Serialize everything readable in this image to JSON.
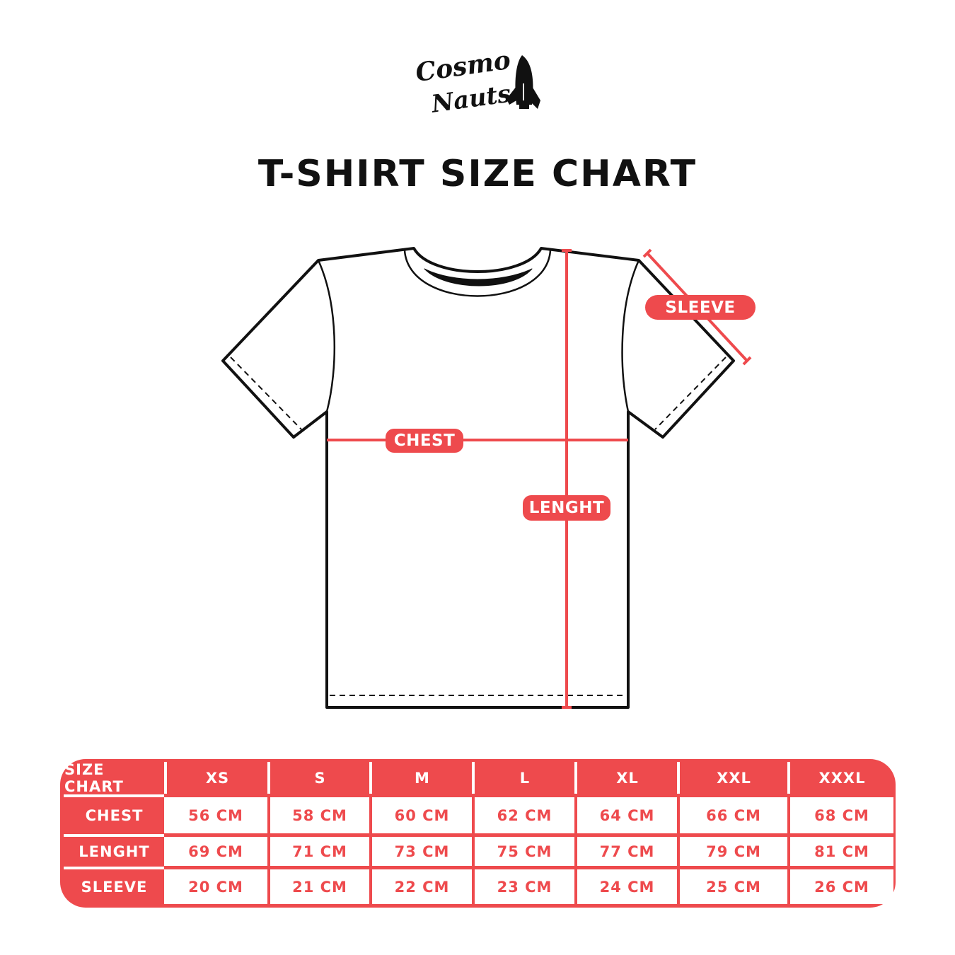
{
  "logo": {
    "text": "Cosmo Nauts",
    "icon": "rocket-icon"
  },
  "title": "T-SHIRT SIZE CHART",
  "diagram": {
    "labels": {
      "chest": "CHEST",
      "length": "LENGHT",
      "sleeve": "SLEEVE"
    },
    "accent_color": "#ee4a4d"
  },
  "table": {
    "corner_label": "SIZE CHART",
    "sizes": [
      "XS",
      "S",
      "M",
      "L",
      "XL",
      "XXL",
      "XXXL"
    ],
    "rows": [
      {
        "label": "CHEST",
        "values": [
          "56 CM",
          "58 CM",
          "60 CM",
          "62 CM",
          "64 CM",
          "66 CM",
          "68 CM"
        ]
      },
      {
        "label": "LENGHT",
        "values": [
          "69 CM",
          "71 CM",
          "73 CM",
          "75 CM",
          "77 CM",
          "79 CM",
          "81 CM"
        ]
      },
      {
        "label": "SLEEVE",
        "values": [
          "20 CM",
          "21 CM",
          "22 CM",
          "23 CM",
          "24 CM",
          "25 CM",
          "26 CM"
        ]
      }
    ]
  }
}
